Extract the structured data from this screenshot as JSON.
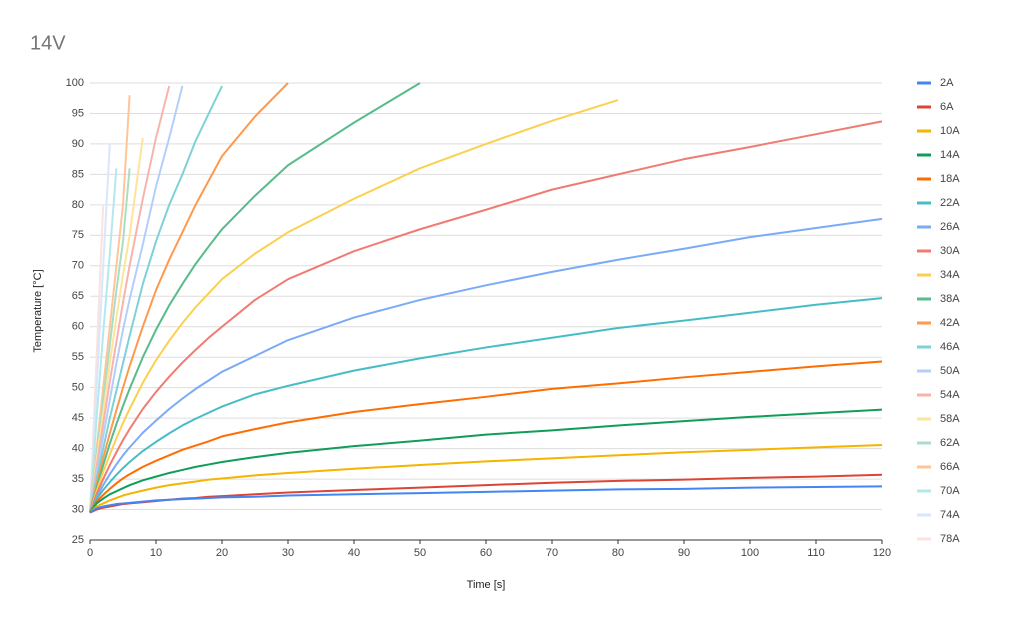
{
  "chart_data": {
    "type": "line",
    "title": "14V",
    "x_label": "Time [s]",
    "y_label": "Temperature [°C]",
    "x": [
      0,
      1,
      2,
      3,
      4,
      5,
      6,
      8,
      10,
      12,
      14,
      16,
      18,
      20,
      25,
      30,
      40,
      50,
      60,
      70,
      80,
      90,
      100,
      110,
      120
    ],
    "series": [
      {
        "name": "2A",
        "color": "#4285f4",
        "values": [
          29.5,
          30.2,
          30.5,
          30.7,
          30.9,
          31.0,
          31.1,
          31.3,
          31.5,
          31.6,
          31.7,
          31.8,
          31.9,
          32.0,
          32.1,
          32.3,
          32.5,
          32.7,
          32.9,
          33.1,
          33.3,
          33.4,
          33.6,
          33.7,
          33.8
        ]
      },
      {
        "name": "6A",
        "color": "#db4437",
        "values": [
          29.5,
          30.0,
          30.3,
          30.5,
          30.7,
          30.9,
          31.0,
          31.2,
          31.4,
          31.6,
          31.8,
          31.9,
          32.1,
          32.2,
          32.5,
          32.8,
          33.2,
          33.6,
          34.0,
          34.4,
          34.7,
          34.9,
          35.2,
          35.4,
          35.7
        ]
      },
      {
        "name": "10A",
        "color": "#f4b400",
        "values": [
          29.5,
          30.5,
          31.0,
          31.5,
          31.9,
          32.3,
          32.6,
          33.1,
          33.6,
          34.0,
          34.3,
          34.6,
          34.9,
          35.1,
          35.6,
          36.0,
          36.7,
          37.3,
          37.9,
          38.4,
          38.9,
          39.4,
          39.8,
          40.2,
          40.6
        ]
      },
      {
        "name": "14A",
        "color": "#0f9d58",
        "values": [
          29.5,
          31.0,
          31.8,
          32.5,
          33.0,
          33.5,
          34.0,
          34.8,
          35.4,
          36.0,
          36.5,
          37.0,
          37.4,
          37.8,
          38.6,
          39.3,
          40.4,
          41.3,
          42.3,
          43.0,
          43.8,
          44.5,
          45.2,
          45.8,
          46.4
        ]
      },
      {
        "name": "18A",
        "color": "#ff6d01",
        "values": [
          29.5,
          31.3,
          32.4,
          33.4,
          34.3,
          35.1,
          35.8,
          37.0,
          38.0,
          38.9,
          39.8,
          40.5,
          41.2,
          42.0,
          43.2,
          44.3,
          46.0,
          47.3,
          48.5,
          49.8,
          50.7,
          51.7,
          52.6,
          53.5,
          54.3
        ]
      },
      {
        "name": "22A",
        "color": "#46bdc6",
        "values": [
          29.5,
          31.7,
          33.2,
          34.5,
          35.7,
          36.8,
          37.8,
          39.6,
          41.1,
          42.5,
          43.8,
          44.9,
          45.9,
          46.9,
          48.9,
          50.3,
          52.8,
          54.8,
          56.6,
          58.2,
          59.8,
          61.0,
          62.3,
          63.6,
          64.7
        ]
      },
      {
        "name": "26A",
        "color": "#7baaf7",
        "values": [
          29.5,
          32.0,
          34.0,
          35.8,
          37.4,
          38.9,
          40.2,
          42.6,
          44.6,
          46.5,
          48.2,
          49.8,
          51.2,
          52.6,
          55.2,
          57.8,
          61.5,
          64.4,
          66.8,
          69.0,
          71.0,
          72.8,
          74.7,
          76.2,
          77.7
        ]
      },
      {
        "name": "30A",
        "color": "#f07b72",
        "values": [
          29.5,
          32.5,
          35.0,
          37.3,
          39.4,
          41.4,
          43.2,
          46.5,
          49.3,
          51.8,
          54.1,
          56.2,
          58.2,
          60.0,
          64.4,
          67.8,
          72.4,
          76.0,
          79.2,
          82.5,
          85.0,
          87.5,
          89.5,
          91.6,
          93.7
        ]
      },
      {
        "name": "34A",
        "color": "#fcd04f",
        "values": [
          29.5,
          33.0,
          36.2,
          39.0,
          41.7,
          44.2,
          46.5,
          50.8,
          54.5,
          57.7,
          60.6,
          63.2,
          65.5,
          67.8,
          72.0,
          75.5,
          81.0,
          86.0,
          90.0,
          93.8,
          97.2,
          null,
          null,
          null,
          null
        ]
      },
      {
        "name": "38A",
        "color": "#57bb8a",
        "values": [
          29.5,
          33.5,
          37.3,
          40.8,
          44.0,
          47.0,
          49.8,
          55.0,
          59.5,
          63.5,
          67.0,
          70.3,
          73.2,
          76.0,
          81.5,
          86.5,
          93.5,
          100,
          null,
          null,
          null,
          null,
          null,
          null,
          null
        ]
      },
      {
        "name": "42A",
        "color": "#ff994d",
        "values": [
          29.5,
          34.2,
          38.5,
          42.5,
          46.3,
          50.0,
          53.5,
          60.0,
          66.0,
          71.0,
          75.5,
          80.0,
          84.0,
          88.0,
          94.5,
          100,
          null,
          null,
          null,
          null,
          null,
          null,
          null,
          null,
          null
        ]
      },
      {
        "name": "46A",
        "color": "#7ed1d7",
        "values": [
          29.5,
          35,
          40,
          45,
          49.5,
          54,
          58.5,
          67,
          74,
          80,
          85,
          90.5,
          95,
          99.5,
          null,
          null,
          null,
          null,
          null,
          null,
          null,
          null,
          null,
          null,
          null
        ]
      },
      {
        "name": "50A",
        "color": "#b3cefb",
        "values": [
          29.5,
          36,
          42,
          48,
          54,
          59.5,
          64.5,
          73.5,
          83,
          91,
          99.5,
          null,
          null,
          null,
          null,
          null,
          null,
          null,
          null,
          null,
          null,
          null,
          null,
          null,
          null
        ]
      },
      {
        "name": "54A",
        "color": "#f7b4ae",
        "values": [
          29.5,
          37,
          44,
          51,
          57.5,
          64,
          70,
          81,
          91,
          99.5,
          null,
          null,
          null,
          null,
          null,
          null,
          null,
          null,
          null,
          null,
          null,
          null,
          null,
          null,
          null
        ]
      },
      {
        "name": "58A",
        "color": "#fde49b",
        "values": [
          29.5,
          38,
          46,
          54,
          61.5,
          68.5,
          75,
          91,
          null,
          null,
          null,
          null,
          null,
          null,
          null,
          null,
          null,
          null,
          null,
          null,
          null,
          null,
          null,
          null,
          null
        ]
      },
      {
        "name": "62A",
        "color": "#abddc5",
        "values": [
          29.5,
          39,
          48,
          57,
          66,
          74,
          86,
          null,
          null,
          null,
          null,
          null,
          null,
          null,
          null,
          null,
          null,
          null,
          null,
          null,
          null,
          null,
          null,
          null,
          null
        ]
      },
      {
        "name": "66A",
        "color": "#ffc599",
        "values": [
          29.5,
          40,
          50,
          60,
          70,
          80,
          98,
          null,
          null,
          null,
          null,
          null,
          null,
          null,
          null,
          null,
          null,
          null,
          null,
          null,
          null,
          null,
          null,
          null,
          null
        ]
      },
      {
        "name": "70A",
        "color": "#b5e8eb",
        "values": [
          29.5,
          45,
          59,
          72,
          86,
          null,
          null,
          null,
          null,
          null,
          null,
          null,
          null,
          null,
          null,
          null,
          null,
          null,
          null,
          null,
          null,
          null,
          null,
          null,
          null
        ]
      },
      {
        "name": "74A",
        "color": "#d9e7fd",
        "values": [
          29.5,
          50,
          70,
          90,
          null,
          null,
          null,
          null,
          null,
          null,
          null,
          null,
          null,
          null,
          null,
          null,
          null,
          null,
          null,
          null,
          null,
          null,
          null,
          null,
          null
        ]
      },
      {
        "name": "78A",
        "color": "#fbe1df",
        "values": [
          29.5,
          55,
          80,
          null,
          null,
          null,
          null,
          null,
          null,
          null,
          null,
          null,
          null,
          null,
          null,
          null,
          null,
          null,
          null,
          null,
          null,
          null,
          null,
          null,
          null
        ]
      }
    ],
    "xlim": [
      0,
      120
    ],
    "xticks": [
      0,
      10,
      20,
      30,
      40,
      50,
      60,
      70,
      80,
      90,
      100,
      110,
      120
    ],
    "ylim": [
      25,
      100
    ],
    "yticks": [
      25,
      30,
      35,
      40,
      45,
      50,
      55,
      60,
      65,
      70,
      75,
      80,
      85,
      90,
      95,
      100
    ],
    "grid": true,
    "legend": "right"
  }
}
